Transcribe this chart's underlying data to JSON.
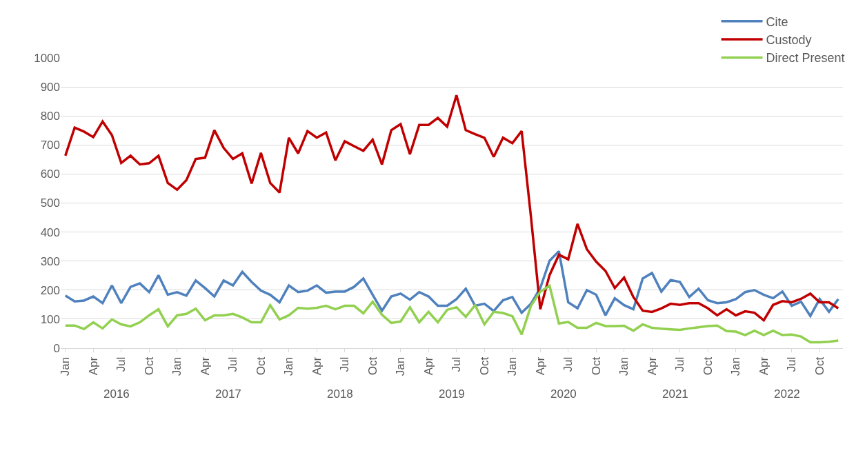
{
  "chart_data": {
    "type": "line",
    "categories": [
      "Jan",
      null,
      null,
      "Apr",
      null,
      null,
      "Jul",
      null,
      null,
      "Oct",
      null,
      null,
      "Jan",
      null,
      null,
      "Apr",
      null,
      null,
      "Jul",
      null,
      null,
      "Oct",
      null,
      null,
      "Jan",
      null,
      null,
      "Apr",
      null,
      null,
      "Jul",
      null,
      null,
      "Oct",
      null,
      null,
      "Jan",
      null,
      null,
      "Apr",
      null,
      null,
      "Jul",
      null,
      null,
      "Oct",
      null,
      null,
      "Jan",
      null,
      null,
      "Apr",
      null,
      null,
      "Jul",
      null,
      null,
      "Oct",
      null,
      null,
      "Jan",
      null,
      null,
      "Apr",
      null,
      null,
      "Jul",
      null,
      null,
      "Oct",
      null,
      null,
      "Jan",
      null,
      null,
      "Apr",
      null,
      null,
      "Jul",
      null,
      null,
      "Oct",
      null,
      null
    ],
    "series": [
      {
        "name": "Cite",
        "color": "#4f81bd",
        "values": [
          181,
          161,
          164,
          178,
          155,
          216,
          155,
          211,
          223,
          193,
          251,
          184,
          193,
          181,
          233,
          207,
          178,
          233,
          216,
          263,
          228,
          198,
          184,
          158,
          216,
          193,
          198,
          216,
          191,
          195,
          195,
          211,
          240,
          184,
          129,
          178,
          188,
          167,
          193,
          178,
          146,
          146,
          169,
          205,
          146,
          153,
          128,
          165,
          176,
          122,
          153,
          207,
          301,
          334,
          158,
          137,
          200,
          184,
          113,
          172,
          148,
          134,
          240,
          259,
          195,
          235,
          228,
          176,
          205,
          165,
          155,
          158,
          169,
          193,
          200,
          184,
          172,
          195,
          146,
          160,
          111,
          169,
          125,
          169
        ]
      },
      {
        "name": "Custody",
        "color": "#c00000",
        "values": [
          663,
          760,
          746,
          727,
          781,
          734,
          638,
          663,
          633,
          637,
          663,
          569,
          546,
          579,
          652,
          656,
          751,
          690,
          652,
          671,
          567,
          673,
          569,
          536,
          725,
          671,
          748,
          725,
          743,
          647,
          713,
          696,
          680,
          718,
          633,
          751,
          772,
          668,
          769,
          769,
          793,
          763,
          871,
          751,
          737,
          725,
          659,
          725,
          706,
          748,
          452,
          134,
          252,
          322,
          306,
          428,
          341,
          298,
          266,
          207,
          243,
          176,
          129,
          125,
          137,
          153,
          149,
          155,
          155,
          137,
          113,
          134,
          113,
          127,
          122,
          96,
          149,
          162,
          158,
          170,
          188,
          158,
          158,
          137
        ]
      },
      {
        "name": "Direct Present",
        "color": "#92d050",
        "values": [
          78,
          78,
          66,
          89,
          68,
          99,
          82,
          75,
          89,
          113,
          134,
          75,
          113,
          118,
          136,
          96,
          113,
          113,
          118,
          106,
          89,
          89,
          148,
          99,
          113,
          139,
          136,
          139,
          146,
          134,
          146,
          146,
          120,
          160,
          115,
          87,
          92,
          141,
          89,
          125,
          89,
          132,
          141,
          108,
          148,
          82,
          125,
          121,
          110,
          47,
          146,
          195,
          215,
          85,
          90,
          70,
          70,
          87,
          76,
          76,
          77,
          60,
          82,
          70,
          67,
          65,
          63,
          68,
          72,
          76,
          78,
          59,
          57,
          45,
          60,
          45,
          60,
          45,
          47,
          40,
          20,
          20,
          22,
          26
        ]
      }
    ],
    "annotations": [
      "2016",
      "2017",
      "2018",
      "2019",
      "2020",
      "2021",
      "2022"
    ],
    "ylim": [
      0,
      1000
    ],
    "yticks": [
      0,
      100,
      200,
      300,
      400,
      500,
      600,
      700,
      800,
      900,
      1000
    ],
    "grid": "y",
    "legend": "top right",
    "marker": "none",
    "line_style": "solid"
  }
}
